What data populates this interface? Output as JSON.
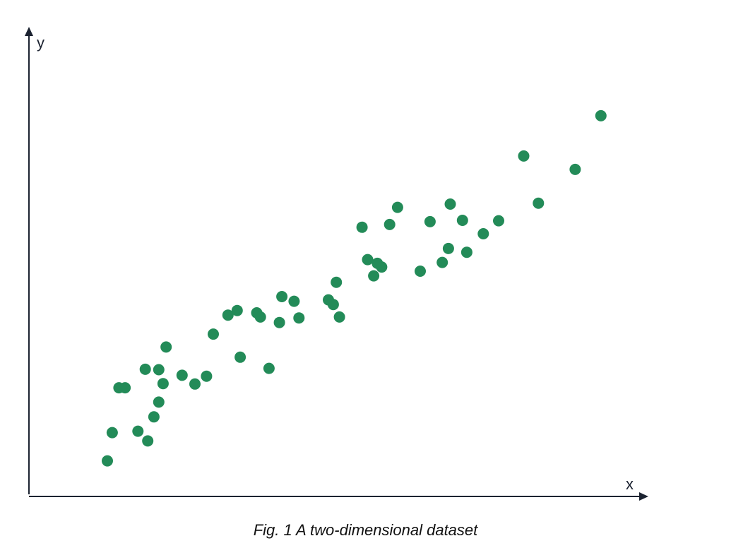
{
  "caption": "Fig. 1 A two-dimensional dataset",
  "colors": {
    "point": "#238b58",
    "axis": "#1c2331"
  },
  "chart_data": {
    "type": "scatter",
    "title": "",
    "xlabel": "x",
    "ylabel": "y",
    "grid": false,
    "legend": "none",
    "xlim": [
      0,
      100
    ],
    "ylim": [
      0,
      100
    ],
    "series": [
      {
        "points": [
          [
            12.8,
            7.7
          ],
          [
            13.6,
            13.8
          ],
          [
            14.7,
            23.5
          ],
          [
            15.7,
            23.5
          ],
          [
            17.8,
            14.1
          ],
          [
            19.0,
            27.5
          ],
          [
            19.4,
            12.0
          ],
          [
            20.4,
            17.2
          ],
          [
            21.2,
            20.4
          ],
          [
            21.2,
            27.4
          ],
          [
            21.9,
            24.4
          ],
          [
            22.4,
            32.3
          ],
          [
            25.0,
            26.2
          ],
          [
            27.1,
            24.3
          ],
          [
            29.0,
            26.0
          ],
          [
            30.1,
            35.1
          ],
          [
            32.5,
            39.2
          ],
          [
            34.0,
            40.2
          ],
          [
            34.5,
            30.1
          ],
          [
            37.2,
            39.7
          ],
          [
            37.8,
            38.8
          ],
          [
            39.2,
            27.7
          ],
          [
            40.9,
            37.6
          ],
          [
            41.3,
            43.2
          ],
          [
            43.3,
            42.2
          ],
          [
            44.1,
            38.6
          ],
          [
            48.9,
            42.5
          ],
          [
            49.7,
            41.5
          ],
          [
            50.2,
            46.3
          ],
          [
            50.7,
            38.8
          ],
          [
            54.4,
            58.2
          ],
          [
            55.3,
            51.2
          ],
          [
            56.3,
            47.7
          ],
          [
            56.9,
            50.4
          ],
          [
            57.6,
            49.6
          ],
          [
            58.9,
            58.8
          ],
          [
            60.2,
            62.5
          ],
          [
            63.9,
            48.7
          ],
          [
            65.5,
            59.4
          ],
          [
            67.5,
            50.6
          ],
          [
            68.5,
            53.6
          ],
          [
            68.8,
            63.2
          ],
          [
            70.8,
            59.7
          ],
          [
            71.5,
            52.8
          ],
          [
            74.2,
            56.8
          ],
          [
            76.7,
            59.6
          ],
          [
            80.8,
            73.6
          ],
          [
            83.2,
            63.4
          ],
          [
            89.2,
            70.7
          ],
          [
            93.4,
            82.3
          ]
        ]
      }
    ]
  }
}
